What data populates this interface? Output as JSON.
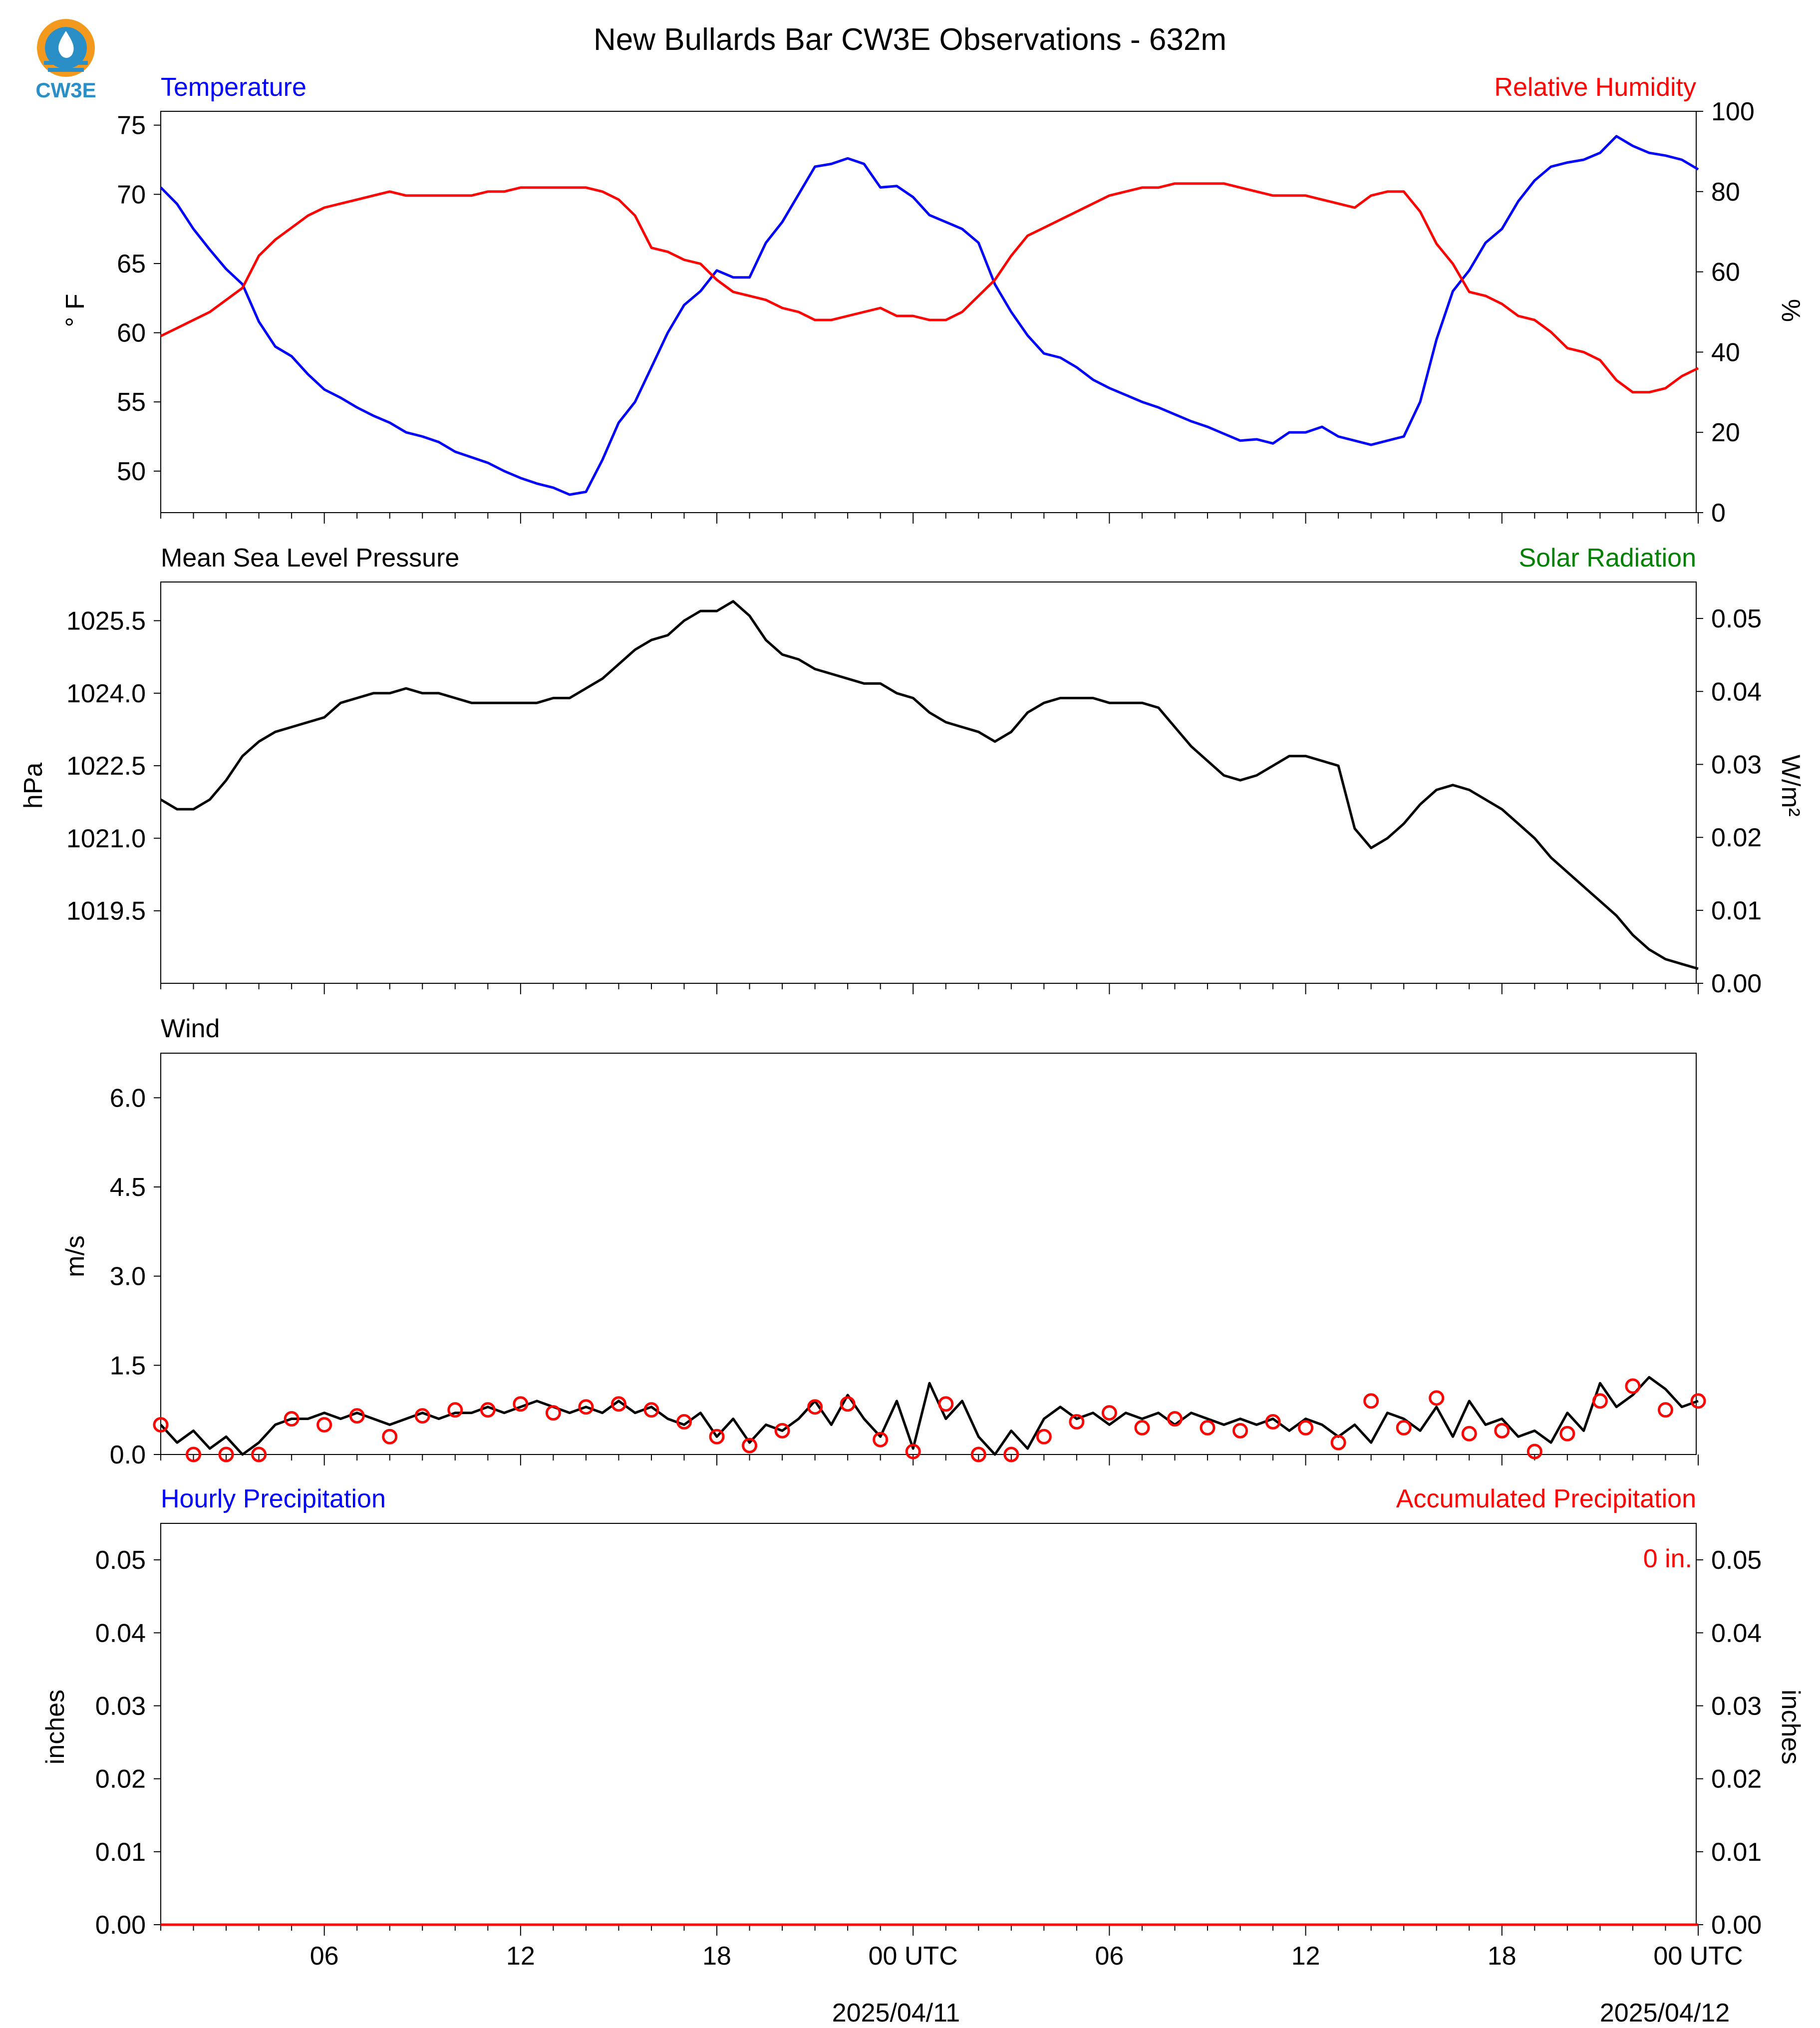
{
  "title": "New Bullards Bar CW3E Observations - 632m",
  "logo_text": "CW3E",
  "colors": {
    "temperature": "#0000ff",
    "humidity": "#ff0000",
    "pressure": "#000000",
    "solar": "#008000",
    "wind": "#000000",
    "gust_marker": "#ff0000",
    "hourly_precip": "#0000ff",
    "accum_precip": "#ff0000",
    "logo_orange": "#f39a1e",
    "logo_blue": "#2a8fc7"
  },
  "x_axis": {
    "tick_labels": [
      "06",
      "12",
      "18",
      "00 UTC",
      "06",
      "12",
      "18",
      "00 UTC"
    ],
    "date_labels": [
      "2025/04/11",
      "2025/04/12"
    ]
  },
  "chart_data": [
    {
      "type": "line",
      "panel": "temperature-humidity",
      "left_title": "Temperature",
      "right_title": "Relative Humidity",
      "ylabel_left": "° F",
      "ylabel_right": "%",
      "ylim_left": [
        47,
        76
      ],
      "ylim_right": [
        0,
        100
      ],
      "yticks_left": [
        50,
        55,
        60,
        65,
        70,
        75
      ],
      "yticks_right": [
        0,
        20,
        40,
        60,
        80,
        100
      ],
      "x_hours_range": [
        1,
        48
      ],
      "series": [
        {
          "name": "Temperature",
          "axis": "left",
          "x": [
            1,
            1.5,
            2,
            2.5,
            3,
            3.5,
            4,
            4.5,
            5,
            5.5,
            6,
            6.5,
            7,
            7.5,
            8,
            8.5,
            9,
            9.5,
            10,
            10.5,
            11,
            11.5,
            12,
            12.5,
            13,
            13.5,
            14,
            14.5,
            15,
            15.5,
            16,
            16.5,
            17,
            17.5,
            18,
            18.5,
            19,
            19.5,
            20,
            20.5,
            21,
            21.5,
            22,
            22.5,
            23,
            23.5,
            24,
            24.5,
            25,
            25.5,
            26,
            26.5,
            27,
            27.5,
            28,
            28.5,
            29,
            29.5,
            30,
            30.5,
            31,
            31.5,
            32,
            32.5,
            33,
            33.5,
            34,
            34.5,
            35,
            35.5,
            36,
            36.5,
            37,
            37.5,
            38,
            38.5,
            39,
            39.5,
            40,
            40.5,
            41,
            41.5,
            42,
            42.5,
            43,
            43.5,
            44,
            44.5,
            45,
            45.5,
            46,
            46.5,
            47,
            47.5,
            48
          ],
          "y": [
            70.5,
            69.3,
            67.5,
            66.0,
            64.6,
            63.5,
            60.8,
            59.0,
            58.3,
            57.0,
            55.9,
            55.3,
            54.6,
            54.0,
            53.5,
            52.8,
            52.5,
            52.1,
            51.4,
            51.0,
            50.6,
            50.0,
            49.5,
            49.1,
            48.8,
            48.3,
            48.5,
            50.8,
            53.5,
            55.0,
            57.5,
            60.0,
            62.0,
            63.0,
            64.5,
            64.0,
            64.0,
            66.5,
            68.0,
            70.0,
            72.0,
            72.2,
            72.6,
            72.2,
            70.5,
            70.6,
            69.8,
            68.5,
            68.0,
            67.5,
            66.5,
            63.5,
            61.5,
            59.8,
            58.5,
            58.2,
            57.5,
            56.6,
            56.0,
            55.5,
            55.0,
            54.6,
            54.1,
            53.6,
            53.2,
            52.7,
            52.2,
            52.3,
            52.0,
            52.8,
            52.8,
            53.2,
            52.5,
            52.2,
            51.9,
            52.2,
            52.5,
            55.0,
            59.5,
            63.0,
            64.5,
            66.5,
            67.5,
            69.5,
            71.0,
            72.0,
            72.3,
            72.5,
            73.0,
            74.2,
            73.5,
            73.0,
            72.8,
            72.5,
            71.8
          ]
        },
        {
          "name": "Relative Humidity",
          "axis": "right",
          "x": [
            1,
            1.5,
            2,
            2.5,
            3,
            3.5,
            4,
            4.5,
            5,
            5.5,
            6,
            6.5,
            7,
            7.5,
            8,
            8.5,
            9,
            9.5,
            10,
            10.5,
            11,
            11.5,
            12,
            12.5,
            13,
            13.5,
            14,
            14.5,
            15,
            15.5,
            16,
            16.5,
            17,
            17.5,
            18,
            18.5,
            19,
            19.5,
            20,
            20.5,
            21,
            21.5,
            22,
            22.5,
            23,
            23.5,
            24,
            24.5,
            25,
            25.5,
            26,
            26.5,
            27,
            27.5,
            28,
            28.5,
            29,
            29.5,
            30,
            30.5,
            31,
            31.5,
            32,
            32.5,
            33,
            33.5,
            34,
            34.5,
            35,
            35.5,
            36,
            36.5,
            37,
            37.5,
            38,
            38.5,
            39,
            39.5,
            40,
            40.5,
            41,
            41.5,
            42,
            42.5,
            43,
            43.5,
            44,
            44.5,
            45,
            45.5,
            46,
            46.5,
            47,
            47.5,
            48
          ],
          "y": [
            44,
            46,
            48,
            50,
            53,
            56,
            64,
            68,
            71,
            74,
            76,
            77,
            78,
            79,
            80,
            79,
            79,
            79,
            79,
            79,
            80,
            80,
            81,
            81,
            81,
            81,
            81,
            80,
            78,
            74,
            66,
            65,
            63,
            62,
            58,
            55,
            54,
            53,
            51,
            50,
            48,
            48,
            49,
            50,
            51,
            49,
            49,
            48,
            48,
            50,
            54,
            58,
            64,
            69,
            71,
            73,
            75,
            77,
            79,
            80,
            81,
            81,
            82,
            82,
            82,
            82,
            81,
            80,
            79,
            79,
            79,
            78,
            77,
            76,
            79,
            80,
            80,
            75,
            67,
            62,
            55,
            54,
            52,
            49,
            48,
            45,
            41,
            40,
            38,
            33,
            30,
            30,
            31,
            34,
            36
          ]
        }
      ]
    },
    {
      "type": "line",
      "panel": "pressure-solar",
      "left_title": "Mean Sea Level Pressure",
      "right_title": "Solar Radiation",
      "ylabel_left": "hPa",
      "ylabel_right": "W/m²",
      "ylim_left": [
        1018.0,
        1026.3
      ],
      "ylim_right": [
        0.0,
        0.055
      ],
      "yticks_left": [
        1019.5,
        1021.0,
        1022.5,
        1024.0,
        1025.5
      ],
      "yticks_left_labels": [
        "1019.5",
        "1021.0",
        "1022.5",
        "1024.0",
        "1025.5"
      ],
      "yticks_right": [
        0.0,
        0.01,
        0.02,
        0.03,
        0.04,
        0.05
      ],
      "yticks_right_labels": [
        "0.00",
        "0.01",
        "0.02",
        "0.03",
        "0.04",
        "0.05"
      ],
      "x_hours_range": [
        1,
        48
      ],
      "series": [
        {
          "name": "Mean Sea Level Pressure",
          "axis": "left",
          "x": [
            1,
            1.5,
            2,
            2.5,
            3,
            3.5,
            4,
            4.5,
            5,
            5.5,
            6,
            6.5,
            7,
            7.5,
            8,
            8.5,
            9,
            9.5,
            10,
            10.5,
            11,
            11.5,
            12,
            12.5,
            13,
            13.5,
            14,
            14.5,
            15,
            15.5,
            16,
            16.5,
            17,
            17.5,
            18,
            18.5,
            19,
            19.5,
            20,
            20.5,
            21,
            21.5,
            22,
            22.5,
            23,
            23.5,
            24,
            24.5,
            25,
            25.5,
            26,
            26.5,
            27,
            27.5,
            28,
            28.5,
            29,
            29.5,
            30,
            30.5,
            31,
            31.5,
            32,
            32.5,
            33,
            33.5,
            34,
            34.5,
            35,
            35.5,
            36,
            36.5,
            37,
            37.5,
            38,
            38.5,
            39,
            39.5,
            40,
            40.5,
            41,
            41.5,
            42,
            42.5,
            43,
            43.5,
            44,
            44.5,
            45,
            45.5,
            46,
            46.5,
            47,
            47.5,
            48
          ],
          "y": [
            1021.8,
            1021.6,
            1021.6,
            1021.8,
            1022.2,
            1022.7,
            1023.0,
            1023.2,
            1023.3,
            1023.4,
            1023.5,
            1023.8,
            1023.9,
            1024.0,
            1024.0,
            1024.1,
            1024.0,
            1024.0,
            1023.9,
            1023.8,
            1023.8,
            1023.8,
            1023.8,
            1023.8,
            1023.9,
            1023.9,
            1024.1,
            1024.3,
            1024.6,
            1024.9,
            1025.1,
            1025.2,
            1025.5,
            1025.7,
            1025.7,
            1025.9,
            1025.6,
            1025.1,
            1024.8,
            1024.7,
            1024.5,
            1024.4,
            1024.3,
            1024.2,
            1024.2,
            1024.0,
            1023.9,
            1023.6,
            1023.4,
            1023.3,
            1023.2,
            1023.0,
            1023.2,
            1023.6,
            1023.8,
            1023.9,
            1023.9,
            1023.9,
            1023.8,
            1023.8,
            1023.8,
            1023.7,
            1023.3,
            1022.9,
            1022.6,
            1022.3,
            1022.2,
            1022.3,
            1022.5,
            1022.7,
            1022.7,
            1022.6,
            1022.5,
            1021.2,
            1020.8,
            1021.0,
            1021.3,
            1021.7,
            1022.0,
            1022.1,
            1022.0,
            1021.8,
            1021.6,
            1021.3,
            1021.0,
            1020.6,
            1020.3,
            1020.0,
            1019.7,
            1019.4,
            1019.0,
            1018.7,
            1018.5,
            1018.4,
            1018.3
          ]
        }
      ]
    },
    {
      "type": "line",
      "panel": "wind",
      "left_title": "Wind",
      "ylabel_left": "m/s",
      "ylim_left": [
        0.0,
        6.75
      ],
      "yticks_left": [
        0.0,
        1.5,
        3.0,
        4.5,
        6.0
      ],
      "yticks_left_labels": [
        "0.0",
        "1.5",
        "3.0",
        "4.5",
        "6.0"
      ],
      "x_hours_range": [
        1,
        48
      ],
      "series": [
        {
          "name": "Wind Speed",
          "axis": "left",
          "x": [
            1,
            1.5,
            2,
            2.5,
            3,
            3.5,
            4,
            4.5,
            5,
            5.5,
            6,
            6.5,
            7,
            7.5,
            8,
            8.5,
            9,
            9.5,
            10,
            10.5,
            11,
            11.5,
            12,
            12.5,
            13,
            13.5,
            14,
            14.5,
            15,
            15.5,
            16,
            16.5,
            17,
            17.5,
            18,
            18.5,
            19,
            19.5,
            20,
            20.5,
            21,
            21.5,
            22,
            22.5,
            23,
            23.5,
            24,
            24.5,
            25,
            25.5,
            26,
            26.5,
            27,
            27.5,
            28,
            28.5,
            29,
            29.5,
            30,
            30.5,
            31,
            31.5,
            32,
            32.5,
            33,
            33.5,
            34,
            34.5,
            35,
            35.5,
            36,
            36.5,
            37,
            37.5,
            38,
            38.5,
            39,
            39.5,
            40,
            40.5,
            41,
            41.5,
            42,
            42.5,
            43,
            43.5,
            44,
            44.5,
            45,
            45.5,
            46,
            46.5,
            47,
            47.5,
            48
          ],
          "y": [
            0.5,
            0.2,
            0.4,
            0.1,
            0.3,
            0.0,
            0.2,
            0.5,
            0.6,
            0.6,
            0.7,
            0.6,
            0.7,
            0.6,
            0.5,
            0.6,
            0.7,
            0.6,
            0.7,
            0.7,
            0.8,
            0.7,
            0.8,
            0.9,
            0.8,
            0.7,
            0.8,
            0.7,
            0.9,
            0.7,
            0.8,
            0.6,
            0.5,
            0.7,
            0.3,
            0.6,
            0.2,
            0.5,
            0.4,
            0.6,
            0.9,
            0.5,
            1.0,
            0.6,
            0.3,
            0.9,
            0.1,
            1.2,
            0.6,
            0.9,
            0.3,
            0.0,
            0.4,
            0.1,
            0.6,
            0.8,
            0.6,
            0.7,
            0.5,
            0.7,
            0.6,
            0.7,
            0.5,
            0.7,
            0.6,
            0.5,
            0.6,
            0.5,
            0.6,
            0.4,
            0.6,
            0.5,
            0.3,
            0.5,
            0.2,
            0.7,
            0.6,
            0.4,
            0.8,
            0.3,
            0.9,
            0.5,
            0.6,
            0.3,
            0.4,
            0.2,
            0.7,
            0.4,
            1.2,
            0.8,
            1.0,
            1.3,
            1.1,
            0.8,
            0.9
          ]
        },
        {
          "name": "Wind Gust",
          "axis": "left",
          "marker": "circle",
          "x": [
            1,
            2,
            3,
            4,
            5,
            6,
            7,
            8,
            9,
            10,
            11,
            12,
            13,
            14,
            15,
            16,
            17,
            18,
            19,
            20,
            21,
            22,
            23,
            24,
            25,
            26,
            27,
            28,
            29,
            30,
            31,
            32,
            33,
            34,
            35,
            36,
            37,
            38,
            39,
            40,
            41,
            42,
            43,
            44,
            45,
            46,
            47,
            48
          ],
          "y": [
            0.5,
            0.0,
            0.0,
            0.0,
            0.6,
            0.5,
            0.65,
            0.3,
            0.65,
            0.75,
            0.75,
            0.85,
            0.7,
            0.8,
            0.85,
            0.75,
            0.55,
            0.3,
            0.15,
            0.4,
            0.8,
            0.85,
            0.25,
            0.05,
            0.85,
            0.0,
            0.0,
            0.3,
            0.55,
            0.7,
            0.45,
            0.6,
            0.45,
            0.4,
            0.55,
            0.45,
            0.2,
            0.9,
            0.45,
            0.95,
            0.35,
            0.4,
            0.05,
            0.35,
            0.9,
            1.15,
            0.75,
            0.9
          ]
        }
      ]
    },
    {
      "type": "line",
      "panel": "precipitation",
      "left_title": "Hourly Precipitation",
      "right_title": "Accumulated Precipitation",
      "annotation": "0 in.",
      "ylabel_left": "inches",
      "ylabel_right": "inches",
      "ylim_left": [
        0.0,
        0.055
      ],
      "ylim_right": [
        0.0,
        0.055
      ],
      "yticks_left": [
        0.0,
        0.01,
        0.02,
        0.03,
        0.04,
        0.05
      ],
      "yticks_left_labels": [
        "0.00",
        "0.01",
        "0.02",
        "0.03",
        "0.04",
        "0.05"
      ],
      "yticks_right": [
        0.0,
        0.01,
        0.02,
        0.03,
        0.04,
        0.05
      ],
      "yticks_right_labels": [
        "0.00",
        "0.01",
        "0.02",
        "0.03",
        "0.04",
        "0.05"
      ],
      "x_hours_range": [
        1,
        48
      ],
      "series": [
        {
          "name": "Accumulated Precipitation",
          "axis": "right",
          "x": [
            1,
            48
          ],
          "y": [
            0,
            0
          ]
        }
      ]
    }
  ]
}
